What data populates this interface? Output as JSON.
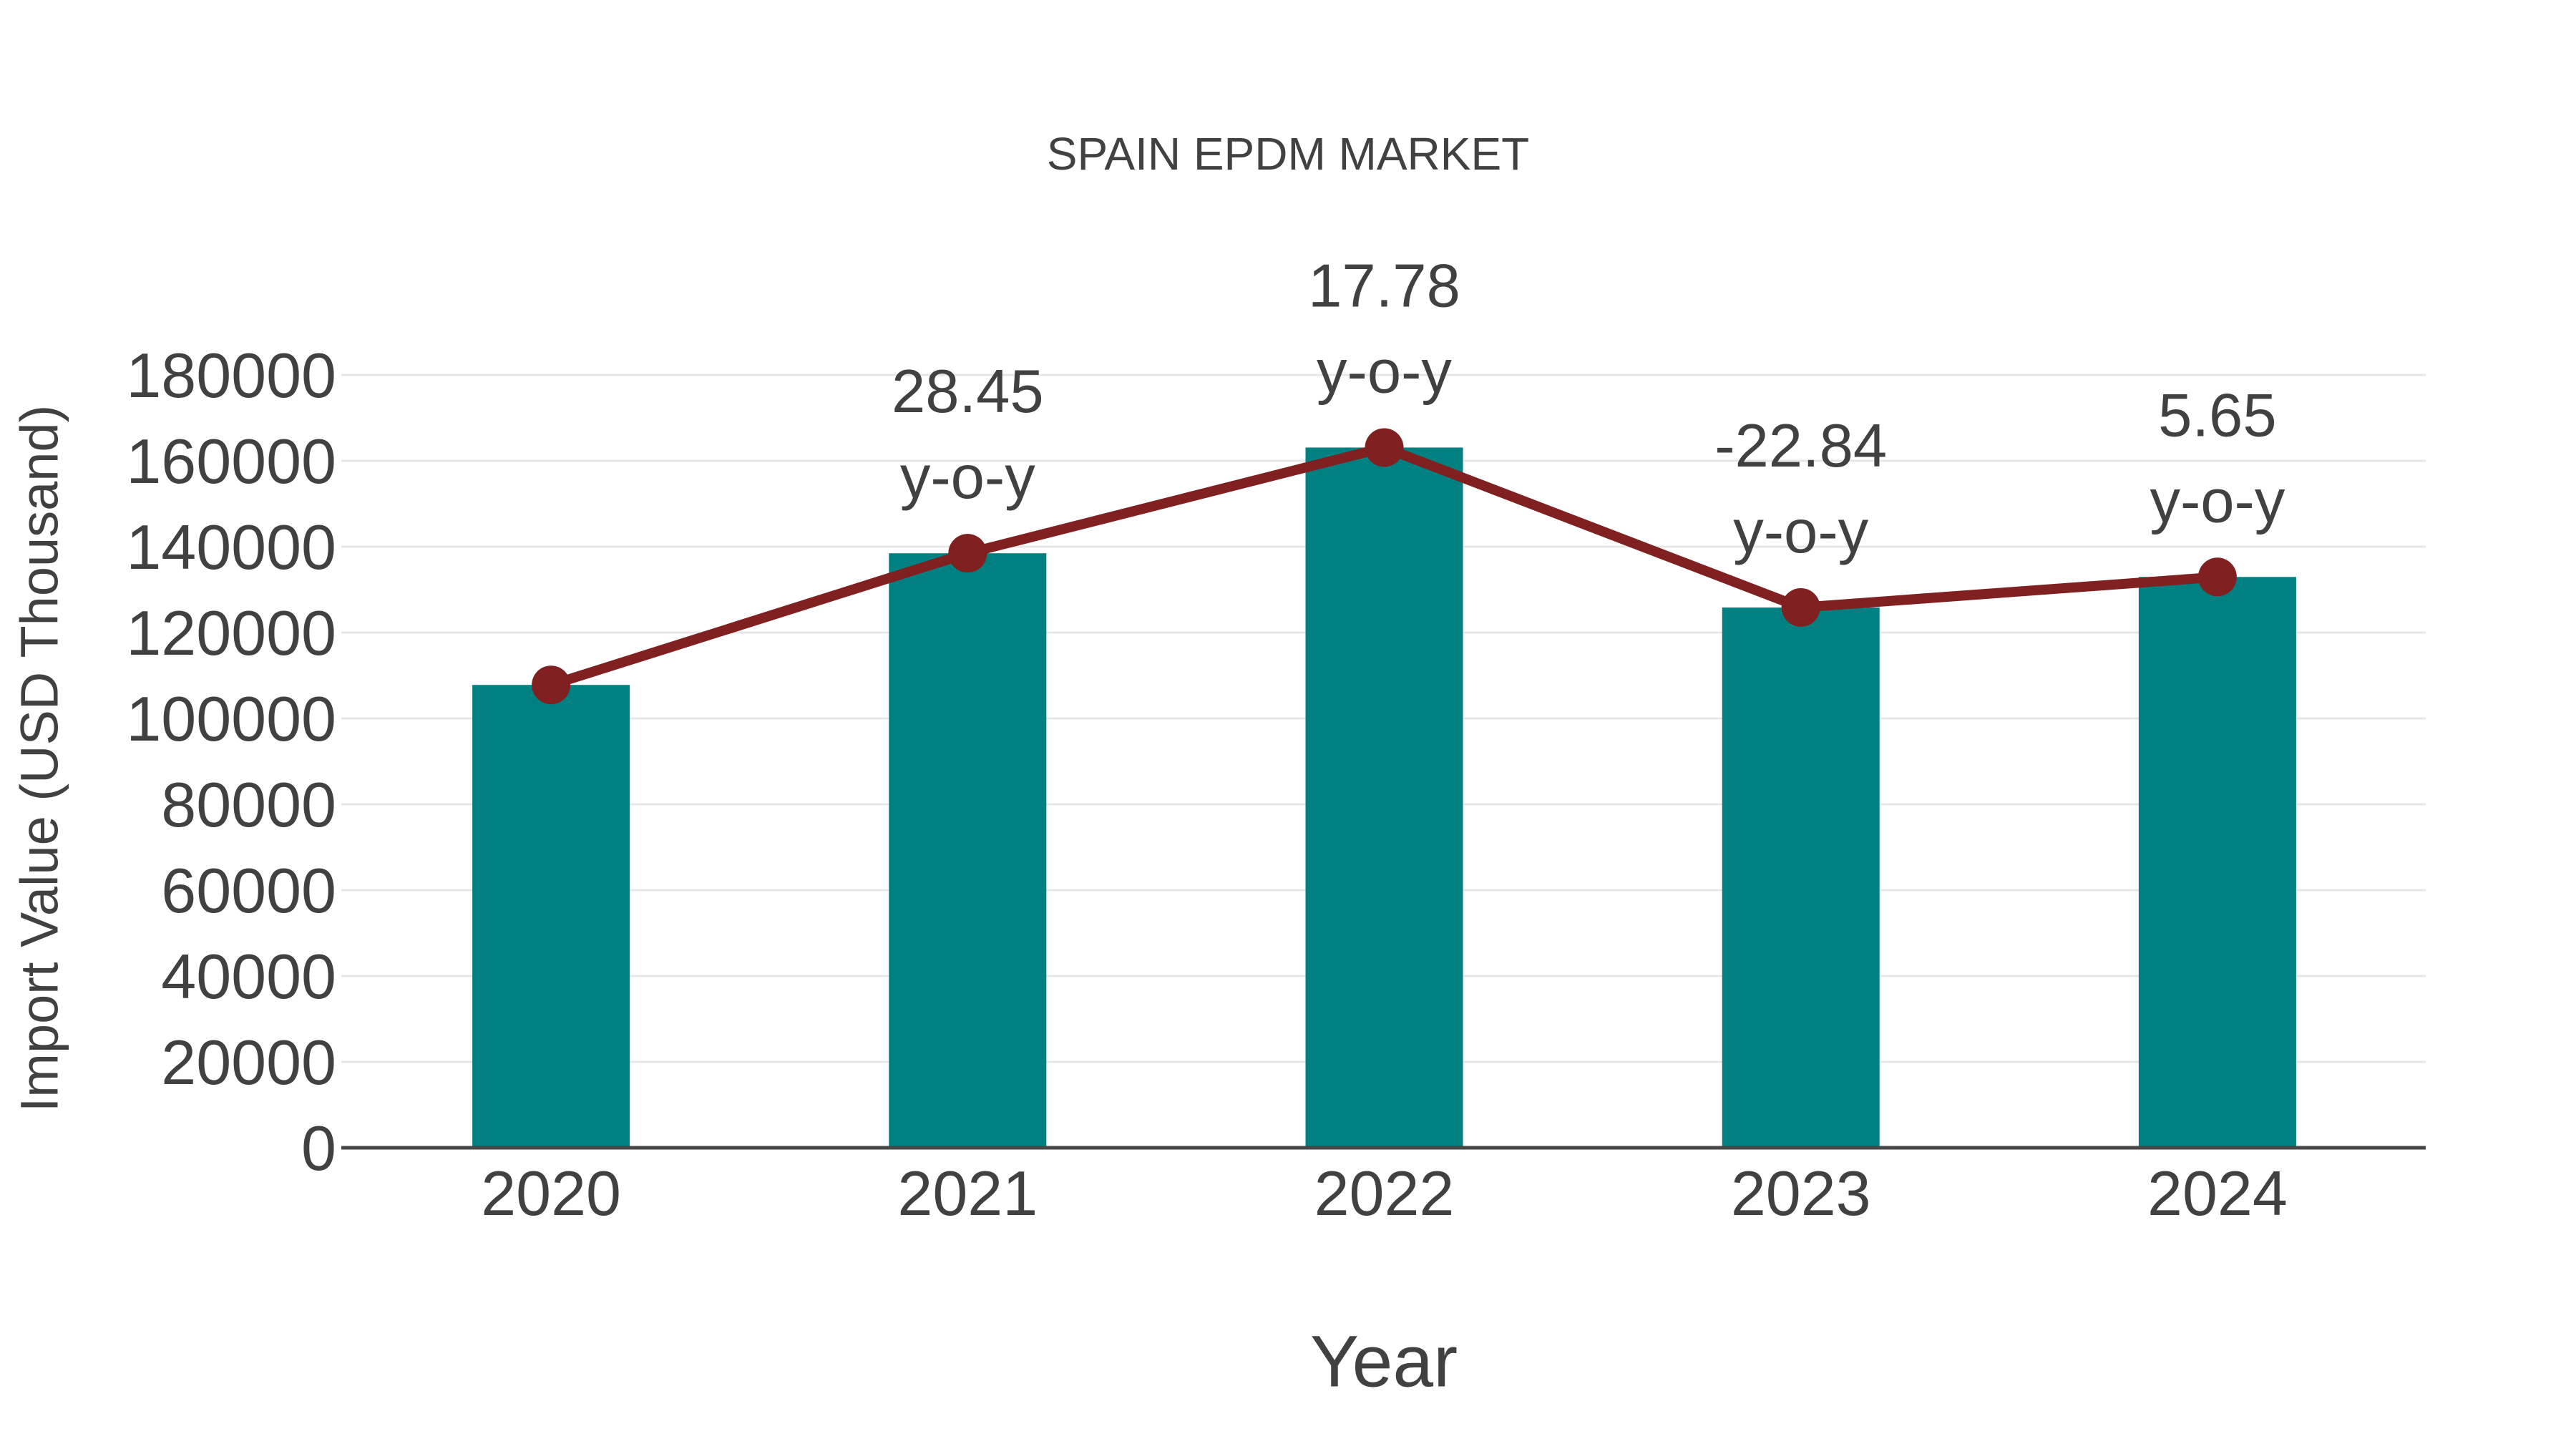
{
  "chart_data": {
    "type": "bar",
    "title": "SPAIN EPDM MARKET",
    "xlabel": "Year",
    "ylabel": "Import Value (USD Thousand)",
    "categories": [
      "2020",
      "2021",
      "2022",
      "2023",
      "2024"
    ],
    "series": [
      {
        "name": "import-value-bars",
        "type": "bar",
        "values": [
          107800,
          138470,
          163090,
          125840,
          132950
        ]
      },
      {
        "name": "import-value-trend-line",
        "type": "line",
        "values": [
          107800,
          138470,
          163090,
          125840,
          132950
        ]
      }
    ],
    "annotations": [
      {
        "category": "2021",
        "value_label": "28.45",
        "sublabel": "y-o-y"
      },
      {
        "category": "2022",
        "value_label": "17.78",
        "sublabel": "y-o-y"
      },
      {
        "category": "2023",
        "value_label": "-22.84",
        "sublabel": "y-o-y"
      },
      {
        "category": "2024",
        "value_label": "5.65",
        "sublabel": "y-o-y"
      }
    ],
    "yticks": [
      0,
      20000,
      40000,
      60000,
      80000,
      100000,
      120000,
      140000,
      160000,
      180000
    ],
    "ylim": [
      0,
      180000
    ],
    "grid": true,
    "legend_position": "none",
    "colors": {
      "bar": "#008080",
      "line": "#802020",
      "marker": "#802020",
      "grid": "#e7e7e7",
      "axis": "#474747",
      "text": "#414141"
    }
  }
}
